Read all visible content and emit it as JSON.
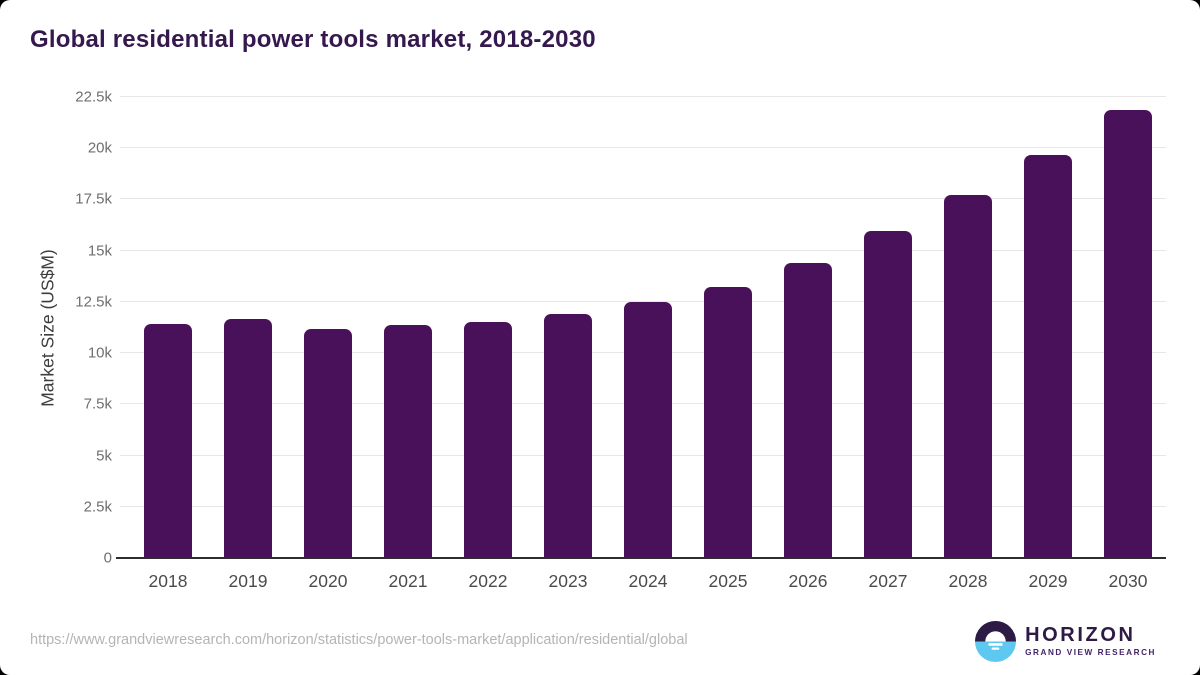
{
  "page": {
    "title": "Global residential power tools market, 2018-2030",
    "source_url": "https://www.grandviewresearch.com/horizon/statistics/power-tools-market/application/residential/global"
  },
  "logo": {
    "name": "HORIZON",
    "subtitle": "GRAND VIEW RESEARCH"
  },
  "colors": {
    "bar": "#49115A",
    "title": "#35194E",
    "grid": "#e7e7e7",
    "axis": "#2d2d2d",
    "tick": "#6f6f6f",
    "xlabel": "#4b4b4b",
    "ylabel": "#3d3d3d",
    "url": "#b4b4b4",
    "logo_purple": "#2D1A45",
    "logo_sub": "#44246A",
    "logo_blue": "#5FC8F0"
  },
  "chart_data": {
    "type": "bar",
    "title": "Global residential power tools market, 2018-2030",
    "categories": [
      "2018",
      "2019",
      "2020",
      "2021",
      "2022",
      "2023",
      "2024",
      "2025",
      "2026",
      "2027",
      "2028",
      "2029",
      "2030"
    ],
    "values": [
      11400,
      11650,
      11200,
      11350,
      11500,
      11900,
      12500,
      13250,
      14400,
      15950,
      17700,
      19650,
      21850
    ],
    "xlabel": "",
    "ylabel": "Market Size (US$M)",
    "ylim": [
      0,
      22500
    ],
    "ytick_step": 2500,
    "ytick_labels": [
      "0",
      "2.5k",
      "5k",
      "7.5k",
      "10k",
      "12.5k",
      "15k",
      "17.5k",
      "20k",
      "22.5k"
    ],
    "grid": "horizontal",
    "legend_position": "none",
    "bar_color": "#49115A"
  }
}
